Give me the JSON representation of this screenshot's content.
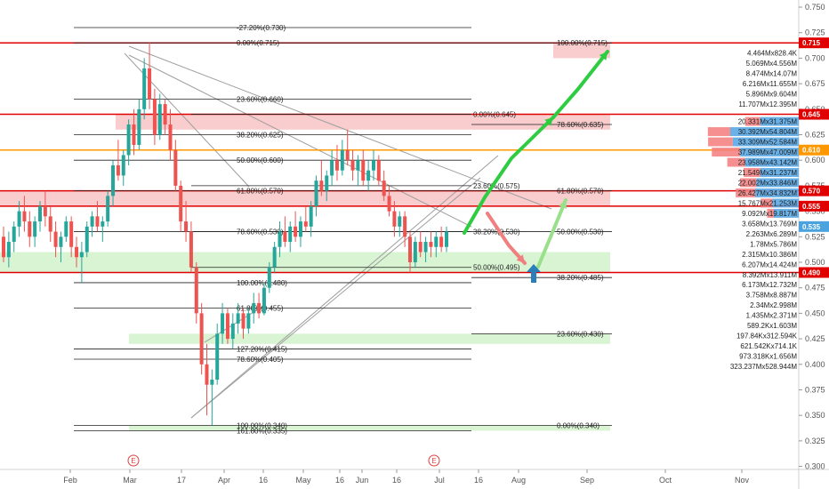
{
  "colors": {
    "up": "#26a69a",
    "down": "#ef5350",
    "red_line": "#e00000",
    "orange_line": "#ff9800",
    "green_arrow": "#2ecc40",
    "blue_arrow": "#2a7fb8",
    "red_zone": "#f7b6b8",
    "green_zone": "#c8f0c0",
    "vp_red": "#f47c7c",
    "vp_blue": "#5aa9e6"
  },
  "chart_data": {
    "type": "candlestick",
    "x_ticks": [
      "Feb",
      "Mar",
      "17",
      "Apr",
      "16",
      "May",
      "16",
      "Jun",
      "16",
      "Jul",
      "16",
      "Aug",
      "Sep",
      "Oct",
      "Nov"
    ],
    "y_ticks": [
      "0.300",
      "0.325",
      "0.350",
      "0.375",
      "0.400",
      "0.425",
      "0.450",
      "0.475",
      "0.500",
      "0.525",
      "0.550",
      "0.575",
      "0.600",
      "0.625",
      "0.650",
      "0.675",
      "0.700",
      "0.725",
      "0.750"
    ],
    "ylim": [
      0.297,
      0.757
    ],
    "events": [
      {
        "label": "E",
        "x": 150
      },
      {
        "label": "E",
        "x": 488
      }
    ],
    "candles": [
      [
        0.525,
        0.535,
        0.5,
        0.505
      ],
      [
        0.505,
        0.53,
        0.495,
        0.52
      ],
      [
        0.52,
        0.54,
        0.51,
        0.535
      ],
      [
        0.535,
        0.56,
        0.525,
        0.55
      ],
      [
        0.55,
        0.565,
        0.53,
        0.54
      ],
      [
        0.54,
        0.55,
        0.515,
        0.525
      ],
      [
        0.525,
        0.545,
        0.515,
        0.54
      ],
      [
        0.54,
        0.56,
        0.53,
        0.555
      ],
      [
        0.555,
        0.57,
        0.535,
        0.545
      ],
      [
        0.545,
        0.555,
        0.52,
        0.53
      ],
      [
        0.53,
        0.54,
        0.505,
        0.515
      ],
      [
        0.515,
        0.53,
        0.5,
        0.525
      ],
      [
        0.525,
        0.545,
        0.52,
        0.54
      ],
      [
        0.54,
        0.545,
        0.505,
        0.515
      ],
      [
        0.515,
        0.525,
        0.495,
        0.505
      ],
      [
        0.505,
        0.52,
        0.48,
        0.51
      ],
      [
        0.51,
        0.54,
        0.505,
        0.535
      ],
      [
        0.535,
        0.55,
        0.525,
        0.545
      ],
      [
        0.545,
        0.56,
        0.53,
        0.535
      ],
      [
        0.535,
        0.545,
        0.52,
        0.54
      ],
      [
        0.54,
        0.57,
        0.535,
        0.565
      ],
      [
        0.565,
        0.6,
        0.555,
        0.595
      ],
      [
        0.595,
        0.62,
        0.58,
        0.585
      ],
      [
        0.585,
        0.61,
        0.575,
        0.605
      ],
      [
        0.605,
        0.64,
        0.595,
        0.635
      ],
      [
        0.635,
        0.65,
        0.605,
        0.615
      ],
      [
        0.615,
        0.66,
        0.61,
        0.65
      ],
      [
        0.65,
        0.7,
        0.64,
        0.69
      ],
      [
        0.69,
        0.715,
        0.65,
        0.66
      ],
      [
        0.66,
        0.67,
        0.615,
        0.625
      ],
      [
        0.625,
        0.665,
        0.62,
        0.655
      ],
      [
        0.655,
        0.66,
        0.625,
        0.635
      ],
      [
        0.635,
        0.65,
        0.6,
        0.61
      ],
      [
        0.61,
        0.62,
        0.57,
        0.575
      ],
      [
        0.575,
        0.58,
        0.53,
        0.54
      ],
      [
        0.54,
        0.56,
        0.52,
        0.53
      ],
      [
        0.53,
        0.54,
        0.49,
        0.495
      ],
      [
        0.495,
        0.5,
        0.44,
        0.45
      ],
      [
        0.45,
        0.46,
        0.39,
        0.4
      ],
      [
        0.4,
        0.42,
        0.35,
        0.38
      ],
      [
        0.38,
        0.395,
        0.34,
        0.385
      ],
      [
        0.385,
        0.44,
        0.38,
        0.43
      ],
      [
        0.43,
        0.46,
        0.42,
        0.45
      ],
      [
        0.45,
        0.455,
        0.42,
        0.425
      ],
      [
        0.425,
        0.45,
        0.415,
        0.44
      ],
      [
        0.44,
        0.46,
        0.43,
        0.45
      ],
      [
        0.45,
        0.455,
        0.425,
        0.435
      ],
      [
        0.435,
        0.455,
        0.43,
        0.45
      ],
      [
        0.45,
        0.47,
        0.44,
        0.46
      ],
      [
        0.46,
        0.47,
        0.445,
        0.45
      ],
      [
        0.45,
        0.48,
        0.448,
        0.475
      ],
      [
        0.475,
        0.5,
        0.47,
        0.495
      ],
      [
        0.495,
        0.52,
        0.49,
        0.515
      ],
      [
        0.515,
        0.54,
        0.505,
        0.53
      ],
      [
        0.53,
        0.545,
        0.515,
        0.52
      ],
      [
        0.52,
        0.54,
        0.51,
        0.535
      ],
      [
        0.535,
        0.55,
        0.52,
        0.525
      ],
      [
        0.525,
        0.545,
        0.515,
        0.54
      ],
      [
        0.54,
        0.555,
        0.53,
        0.535
      ],
      [
        0.535,
        0.56,
        0.525,
        0.555
      ],
      [
        0.555,
        0.585,
        0.545,
        0.58
      ],
      [
        0.58,
        0.6,
        0.565,
        0.57
      ],
      [
        0.57,
        0.59,
        0.56,
        0.585
      ],
      [
        0.585,
        0.61,
        0.575,
        0.6
      ],
      [
        0.6,
        0.615,
        0.58,
        0.59
      ],
      [
        0.59,
        0.62,
        0.585,
        0.61
      ],
      [
        0.61,
        0.63,
        0.595,
        0.6
      ],
      [
        0.6,
        0.61,
        0.58,
        0.59
      ],
      [
        0.59,
        0.605,
        0.575,
        0.6
      ],
      [
        0.6,
        0.61,
        0.575,
        0.58
      ],
      [
        0.58,
        0.6,
        0.57,
        0.59
      ],
      [
        0.59,
        0.61,
        0.58,
        0.6
      ],
      [
        0.6,
        0.605,
        0.575,
        0.58
      ],
      [
        0.58,
        0.59,
        0.56,
        0.565
      ],
      [
        0.565,
        0.575,
        0.545,
        0.55
      ],
      [
        0.55,
        0.56,
        0.525,
        0.535
      ],
      [
        0.535,
        0.55,
        0.525,
        0.545
      ],
      [
        0.545,
        0.55,
        0.515,
        0.525
      ],
      [
        0.525,
        0.53,
        0.49,
        0.5
      ],
      [
        0.5,
        0.525,
        0.495,
        0.52
      ],
      [
        0.52,
        0.53,
        0.505,
        0.51
      ],
      [
        0.51,
        0.525,
        0.5,
        0.52
      ],
      [
        0.52,
        0.53,
        0.505,
        0.515
      ],
      [
        0.515,
        0.53,
        0.505,
        0.525
      ],
      [
        0.525,
        0.535,
        0.51,
        0.515
      ],
      [
        0.515,
        0.535,
        0.51,
        0.53
      ]
    ],
    "price_tags": [
      {
        "value": 0.715,
        "label": "0.715",
        "color": "#e00000"
      },
      {
        "value": 0.645,
        "label": "0.645",
        "color": "#e00000"
      },
      {
        "value": 0.61,
        "label": "0.610",
        "color": "#ff9800"
      },
      {
        "value": 0.57,
        "label": "0.570",
        "color": "#e00000"
      },
      {
        "value": 0.555,
        "label": "0.555",
        "color": "#e00000"
      },
      {
        "value": 0.535,
        "label": "0.535",
        "color": "#4aa3df"
      },
      {
        "value": 0.49,
        "label": "0.490",
        "color": "#e00000"
      }
    ],
    "fib_set_1": [
      {
        "value": 0.73,
        "label": "-27.20%(0.730)"
      },
      {
        "value": 0.715,
        "label": "0.00%(0.715)"
      },
      {
        "value": 0.66,
        "label": "23.60%(0.660)"
      },
      {
        "value": 0.625,
        "label": "38.20%(0.625)"
      },
      {
        "value": 0.6,
        "label": "50.00%(0.600)"
      },
      {
        "value": 0.57,
        "label": "61.80%(0.570)"
      },
      {
        "value": 0.53,
        "label": "78.60%(0.530)"
      },
      {
        "value": 0.48,
        "label": "100.00%(0.480)"
      },
      {
        "value": 0.455,
        "label": "61.80%(0.455)"
      },
      {
        "value": 0.415,
        "label": "127.20%(0.415)"
      },
      {
        "value": 0.405,
        "label": "78.60%(0.405)"
      },
      {
        "value": 0.335,
        "label": "161.80%(0.335)"
      },
      {
        "value": 0.34,
        "label": "100.00%(0.340)"
      }
    ],
    "fib_set_2": [
      {
        "value": 0.645,
        "label": "0.00%(0.645)"
      },
      {
        "value": 0.575,
        "label": "23.60%(0.575)"
      },
      {
        "value": 0.53,
        "label": "38.20%(0.530)"
      },
      {
        "value": 0.495,
        "label": "50.00%(0.495)"
      }
    ],
    "fib_set_3": [
      {
        "value": 0.715,
        "label": "100.00%(0.715)"
      },
      {
        "value": 0.635,
        "label": "78.60%(0.635)"
      },
      {
        "value": 0.57,
        "label": "61.80%(0.570)"
      },
      {
        "value": 0.53,
        "label": "50.00%(0.530)"
      },
      {
        "value": 0.485,
        "label": "38.20%(0.485)"
      },
      {
        "value": 0.43,
        "label": "23.60%(0.430)"
      },
      {
        "value": 0.34,
        "label": "0.00%(0.340)"
      }
    ],
    "volume_profile": [
      {
        "price": 0.705,
        "label": "4.464Mx828.4K",
        "red": 0,
        "blue": 0
      },
      {
        "price": 0.695,
        "label": "5.069Mx4.556M",
        "red": 0,
        "blue": 0
      },
      {
        "price": 0.685,
        "label": "8.474Mx14.07M",
        "red": 0,
        "blue": 0
      },
      {
        "price": 0.675,
        "label": "6.216Mx11.655M",
        "red": 0,
        "blue": 0
      },
      {
        "price": 0.665,
        "label": "5.896Mx9.604M",
        "red": 0,
        "blue": 0
      },
      {
        "price": 0.655,
        "label": "11.707Mx12.395M",
        "red": 0,
        "blue": 0
      },
      {
        "price": 0.638,
        "label": "20.331Mx31.375M",
        "red": 0.2,
        "blue": 0.31
      },
      {
        "price": 0.628,
        "label": "30.392Mx54.804M",
        "red": 0.3,
        "blue": 0.55
      },
      {
        "price": 0.618,
        "label": "33.309Mx52.584M",
        "red": 0.33,
        "blue": 0.53
      },
      {
        "price": 0.608,
        "label": "37.989Mx47.009M",
        "red": 0.38,
        "blue": 0.47
      },
      {
        "price": 0.598,
        "label": "23.958Mx43.142M",
        "red": 0.24,
        "blue": 0.43
      },
      {
        "price": 0.588,
        "label": "21.549Mx31.237M",
        "red": 0.22,
        "blue": 0.31
      },
      {
        "price": 0.578,
        "label": "22.002Mx33.846M",
        "red": 0.22,
        "blue": 0.34
      },
      {
        "price": 0.568,
        "label": "26.427Mx34.832M",
        "red": 0.26,
        "blue": 0.35
      },
      {
        "price": 0.558,
        "label": "15.767Mx21.253M",
        "red": 0.16,
        "blue": 0.21
      },
      {
        "price": 0.548,
        "label": "9.092Mx19.817M",
        "red": 0.09,
        "blue": 0.2
      },
      {
        "price": 0.538,
        "label": "3.658Mx13.769M",
        "red": 0,
        "blue": 0
      },
      {
        "price": 0.528,
        "label": "2.263Mx6.289M",
        "red": 0,
        "blue": 0
      },
      {
        "price": 0.518,
        "label": "1.78Mx5.786M",
        "red": 0,
        "blue": 0
      },
      {
        "price": 0.508,
        "label": "2.315Mx10.386M",
        "red": 0,
        "blue": 0
      },
      {
        "price": 0.498,
        "label": "6.207Mx14.424M",
        "red": 0,
        "blue": 0
      },
      {
        "price": 0.488,
        "label": "8.392Mx13.911M",
        "red": 0,
        "blue": 0
      },
      {
        "price": 0.478,
        "label": "6.173Mx12.732M",
        "red": 0,
        "blue": 0
      },
      {
        "price": 0.468,
        "label": "3.758Mx8.887M",
        "red": 0,
        "blue": 0
      },
      {
        "price": 0.458,
        "label": "2.34Mx2.998M",
        "red": 0,
        "blue": 0
      },
      {
        "price": 0.448,
        "label": "1.435Mx2.371M",
        "red": 0,
        "blue": 0
      },
      {
        "price": 0.438,
        "label": "589.2Kx1.603M",
        "red": 0,
        "blue": 0
      },
      {
        "price": 0.428,
        "label": "197.84Kx312.594K",
        "red": 0,
        "blue": 0
      },
      {
        "price": 0.418,
        "label": "621.542Kx714.1K",
        "red": 0,
        "blue": 0
      },
      {
        "price": 0.408,
        "label": "973.318Kx1.656M",
        "red": 0,
        "blue": 0
      },
      {
        "price": 0.398,
        "label": "323.237Mx528.944M",
        "red": 0,
        "blue": 0
      }
    ],
    "zones": [
      {
        "type": "red",
        "y0": 0.7,
        "y1": 0.715
      },
      {
        "type": "red",
        "y0": 0.63,
        "y1": 0.645
      },
      {
        "type": "red",
        "y0": 0.555,
        "y1": 0.57
      },
      {
        "type": "green",
        "y0": 0.49,
        "y1": 0.51
      },
      {
        "type": "green",
        "y0": 0.42,
        "y1": 0.43
      },
      {
        "type": "green",
        "y0": 0.335,
        "y1": 0.34
      }
    ]
  }
}
